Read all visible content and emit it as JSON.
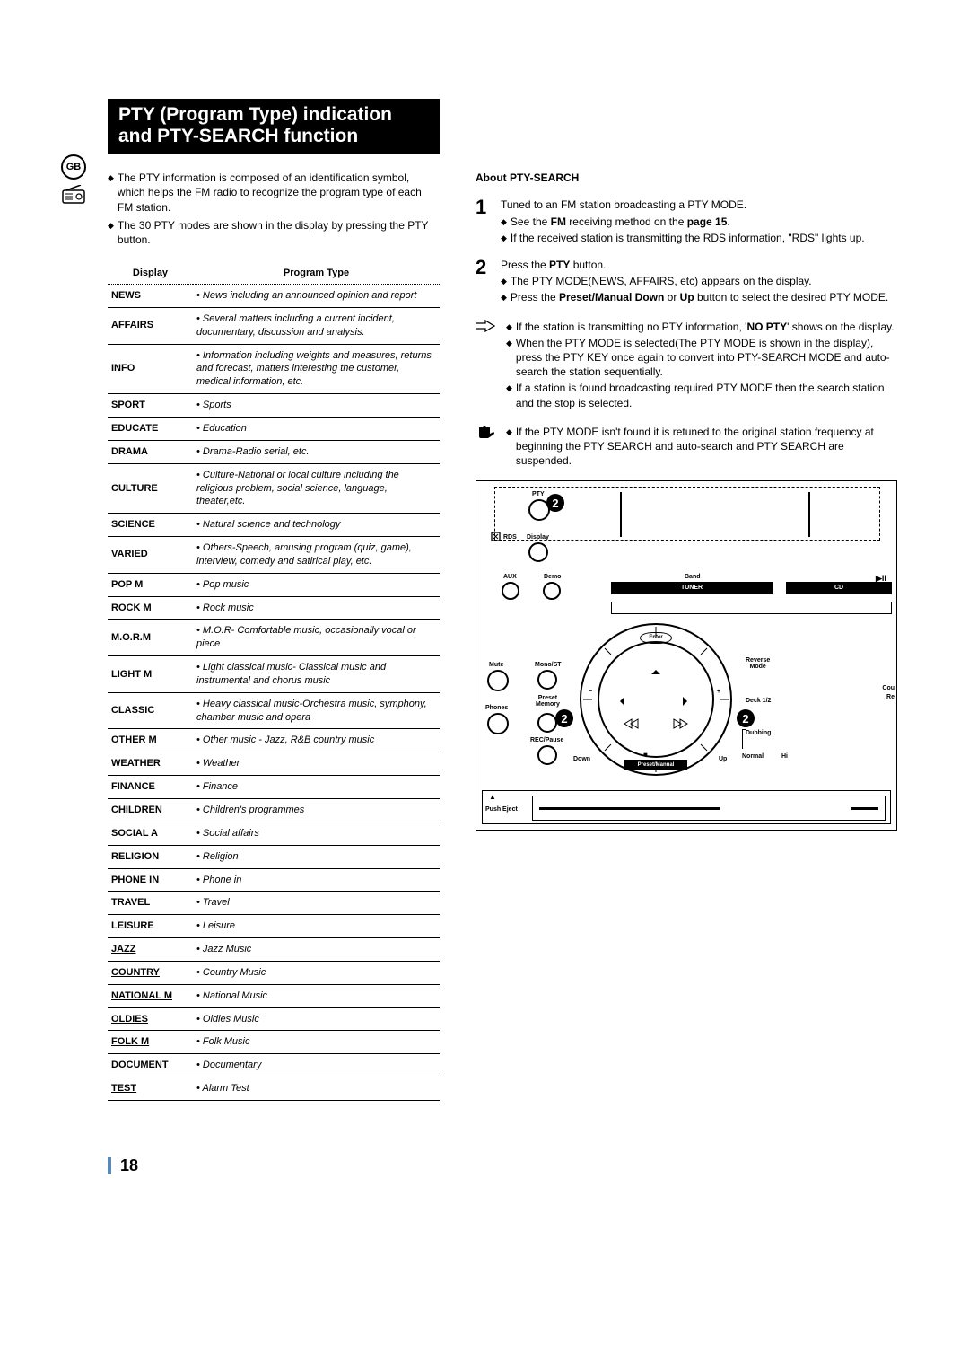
{
  "badge": "GB",
  "title": "PTY (Program Type) indication and PTY-SEARCH function",
  "intro": [
    "The PTY information is composed of an identification symbol, which helps the FM radio to recognize the program type of each FM station.",
    "The 30 PTY modes are shown in the display by pressing the PTY button."
  ],
  "table": {
    "col1": "Display",
    "col2": "Program Type",
    "rows": [
      {
        "d": "NEWS",
        "p": "• News including an announced opinion and report"
      },
      {
        "d": "AFFAIRS",
        "p": "• Several matters including a current incident, documentary, discussion and analysis."
      },
      {
        "d": "INFO",
        "p": "• Information including weights and measures, returns and forecast, matters interesting the customer, medical information, etc."
      },
      {
        "d": "SPORT",
        "p": "• Sports"
      },
      {
        "d": "EDUCATE",
        "p": "• Education"
      },
      {
        "d": "DRAMA",
        "p": "• Drama-Radio serial, etc."
      },
      {
        "d": "CULTURE",
        "p": "• Culture-National or local culture including the religious problem, social science, language, theater,etc."
      },
      {
        "d": "SCIENCE",
        "p": "• Natural science and technology"
      },
      {
        "d": "VARIED",
        "p": "• Others-Speech, amusing program (quiz, game), interview, comedy and satirical play, etc."
      },
      {
        "d": "POP M",
        "p": "• Pop music"
      },
      {
        "d": "ROCK M",
        "p": "• Rock music"
      },
      {
        "d": "M.O.R.M",
        "p": "• M.O.R- Comfortable music, occasionally vocal or piece"
      },
      {
        "d": "LIGHT M",
        "p": "• Light classical music- Classical music and instrumental and chorus music"
      },
      {
        "d": "CLASSIC",
        "p": "• Heavy classical  music-Orchestra music, symphony, chamber music and opera"
      },
      {
        "d": "OTHER M",
        "p": "• Other music - Jazz, R&B country music"
      },
      {
        "d": "WEATHER",
        "p": "• Weather"
      },
      {
        "d": "FINANCE",
        "p": "• Finance"
      },
      {
        "d": "CHILDREN",
        "p": "• Children's programmes"
      },
      {
        "d": "SOCIAL  A",
        "p": "• Social affairs"
      },
      {
        "d": "RELIGION",
        "p": "• Religion"
      },
      {
        "d": "PHONE IN",
        "p": "• Phone in"
      },
      {
        "d": "TRAVEL",
        "p": "• Travel"
      },
      {
        "d": "LEISURE",
        "p": "• Leisure"
      },
      {
        "d": "JAZZ",
        "p": "• Jazz Music",
        "u": true
      },
      {
        "d": "COUNTRY",
        "p": "• Country Music",
        "u": true
      },
      {
        "d": "NATIONAL M",
        "p": "• National Music",
        "u": true
      },
      {
        "d": "OLDIES",
        "p": "• Oldies Music",
        "u": true
      },
      {
        "d": "FOLK M",
        "p": "• Folk Music",
        "u": true
      },
      {
        "d": "DOCUMENT",
        "p": "• Documentary",
        "u": true
      },
      {
        "d": "TEST",
        "p": "• Alarm Test",
        "u": true
      }
    ]
  },
  "right": {
    "heading": "About PTY-SEARCH",
    "step1": {
      "main": "Tuned to an FM station broadcasting a PTY MODE.",
      "subs": [
        "See the FM receiving method on the page 15.",
        "If the received station is transmitting the RDS information, \"RDS\" lights up."
      ]
    },
    "step2": {
      "main": "Press the PTY button.",
      "subs": [
        "The PTY MODE(NEWS, AFFAIRS, etc) appears on the display.",
        "Press the Preset/Manual Down or Up button to select the desired PTY MODE."
      ]
    },
    "note1": [
      "If the station is transmitting no PTY information, 'NO PTY' shows on the display.",
      "When the PTY MODE is selected(The PTY MODE is shown in  the display), press the PTY KEY once again to convert into PTY-SEARCH MODE and auto-search the station sequentially.",
      "If a station is found broadcasting required PTY MODE then the search station and the stop is selected."
    ],
    "note2": [
      "If the PTY MODE isn't found it is retuned to the original station frequency at beginning the PTY SEARCH and auto-search and PTY SEARCH are suspended."
    ]
  },
  "device": {
    "pty": "PTY",
    "rds": "RDS",
    "display": "Display",
    "aux": "AUX",
    "demo": "Demo",
    "band": "Band",
    "tuner": "TUNER",
    "cd": "CD",
    "mute": "Mute",
    "phones": "Phones",
    "monost": "Mono/ST",
    "preset": "Preset",
    "memory": "Memory",
    "recpause": "REC/Pause",
    "enter": "Enter",
    "reverse": "Reverse",
    "mode": "Mode",
    "deck": "Deck 1/2",
    "cou": "Cou",
    "re": "Re",
    "dubbing": "Dubbing",
    "normal": "Normal",
    "hi": "Hi",
    "down": "Down",
    "up": "Up",
    "presetmanual": "Preset/Manual",
    "pusheject": "Push Eject",
    "play": "▶II",
    "triangle": "▲",
    "minus": "−",
    "plus": "+",
    "stop": "■"
  },
  "pagenum": "18"
}
